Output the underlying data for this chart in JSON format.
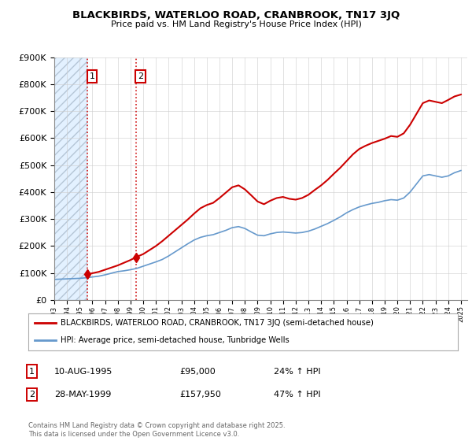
{
  "title_line1": "BLACKBIRDS, WATERLOO ROAD, CRANBROOK, TN17 3JQ",
  "title_line2": "Price paid vs. HM Land Registry's House Price Index (HPI)",
  "sale1_date": 1995.61,
  "sale1_price": 95000,
  "sale1_label": "1",
  "sale2_date": 1999.41,
  "sale2_price": 157950,
  "sale2_label": "2",
  "legend_line1": "BLACKBIRDS, WATERLOO ROAD, CRANBROOK, TN17 3JQ (semi-detached house)",
  "legend_line2": "HPI: Average price, semi-detached house, Tunbridge Wells",
  "table_row1": [
    "1",
    "10-AUG-1995",
    "£95,000",
    "24% ↑ HPI"
  ],
  "table_row2": [
    "2",
    "28-MAY-1999",
    "£157,950",
    "47% ↑ HPI"
  ],
  "footnote": "Contains HM Land Registry data © Crown copyright and database right 2025.\nThis data is licensed under the Open Government Licence v3.0.",
  "property_color": "#cc0000",
  "hpi_color": "#6699cc",
  "ylim_max": 900000,
  "xmin": 1993.0,
  "xmax": 2025.5,
  "years_hpi": [
    1993.0,
    1993.5,
    1994.0,
    1994.5,
    1995.0,
    1995.5,
    1996.0,
    1996.5,
    1997.0,
    1997.5,
    1998.0,
    1998.5,
    1999.0,
    1999.5,
    2000.0,
    2000.5,
    2001.0,
    2001.5,
    2002.0,
    2002.5,
    2003.0,
    2003.5,
    2004.0,
    2004.5,
    2005.0,
    2005.5,
    2006.0,
    2006.5,
    2007.0,
    2007.5,
    2008.0,
    2008.5,
    2009.0,
    2009.5,
    2010.0,
    2010.5,
    2011.0,
    2011.5,
    2012.0,
    2012.5,
    2013.0,
    2013.5,
    2014.0,
    2014.5,
    2015.0,
    2015.5,
    2016.0,
    2016.5,
    2017.0,
    2017.5,
    2018.0,
    2018.5,
    2019.0,
    2019.5,
    2020.0,
    2020.5,
    2021.0,
    2021.5,
    2022.0,
    2022.5,
    2023.0,
    2023.5,
    2024.0,
    2024.5,
    2025.0
  ],
  "hpi_values": [
    76000,
    77000,
    78000,
    79000,
    80000,
    82000,
    85000,
    88000,
    93000,
    99000,
    105000,
    108000,
    112000,
    117000,
    125000,
    133000,
    141000,
    150000,
    163000,
    178000,
    193000,
    208000,
    222000,
    232000,
    238000,
    242000,
    250000,
    258000,
    268000,
    272000,
    265000,
    252000,
    240000,
    238000,
    245000,
    250000,
    252000,
    250000,
    248000,
    250000,
    255000,
    263000,
    273000,
    283000,
    295000,
    308000,
    323000,
    335000,
    345000,
    352000,
    358000,
    362000,
    368000,
    372000,
    370000,
    378000,
    400000,
    430000,
    460000,
    465000,
    460000,
    455000,
    460000,
    472000,
    480000
  ],
  "years_prop": [
    1995.61,
    1996.0,
    1996.5,
    1997.0,
    1997.5,
    1998.0,
    1998.5,
    1999.0,
    1999.41,
    2000.0,
    2000.5,
    2001.0,
    2001.5,
    2002.0,
    2002.5,
    2003.0,
    2003.5,
    2004.0,
    2004.5,
    2005.0,
    2005.5,
    2006.0,
    2006.5,
    2007.0,
    2007.5,
    2008.0,
    2008.5,
    2009.0,
    2009.5,
    2010.0,
    2010.5,
    2011.0,
    2011.5,
    2012.0,
    2012.5,
    2013.0,
    2013.5,
    2014.0,
    2014.5,
    2015.0,
    2015.5,
    2016.0,
    2016.5,
    2017.0,
    2017.5,
    2018.0,
    2018.5,
    2019.0,
    2019.5,
    2020.0,
    2020.5,
    2021.0,
    2021.5,
    2022.0,
    2022.5,
    2023.0,
    2023.5,
    2024.0,
    2024.5,
    2025.0
  ],
  "prop_values": [
    95000,
    99000,
    104000,
    112000,
    120000,
    128000,
    138000,
    148000,
    157950,
    170000,
    185000,
    200000,
    218000,
    238000,
    258000,
    278000,
    298000,
    320000,
    340000,
    352000,
    360000,
    378000,
    398000,
    418000,
    425000,
    410000,
    388000,
    365000,
    355000,
    368000,
    378000,
    382000,
    375000,
    372000,
    378000,
    390000,
    408000,
    425000,
    445000,
    468000,
    490000,
    515000,
    540000,
    560000,
    572000,
    582000,
    590000,
    598000,
    608000,
    605000,
    618000,
    650000,
    690000,
    730000,
    740000,
    735000,
    730000,
    742000,
    755000,
    762000
  ]
}
